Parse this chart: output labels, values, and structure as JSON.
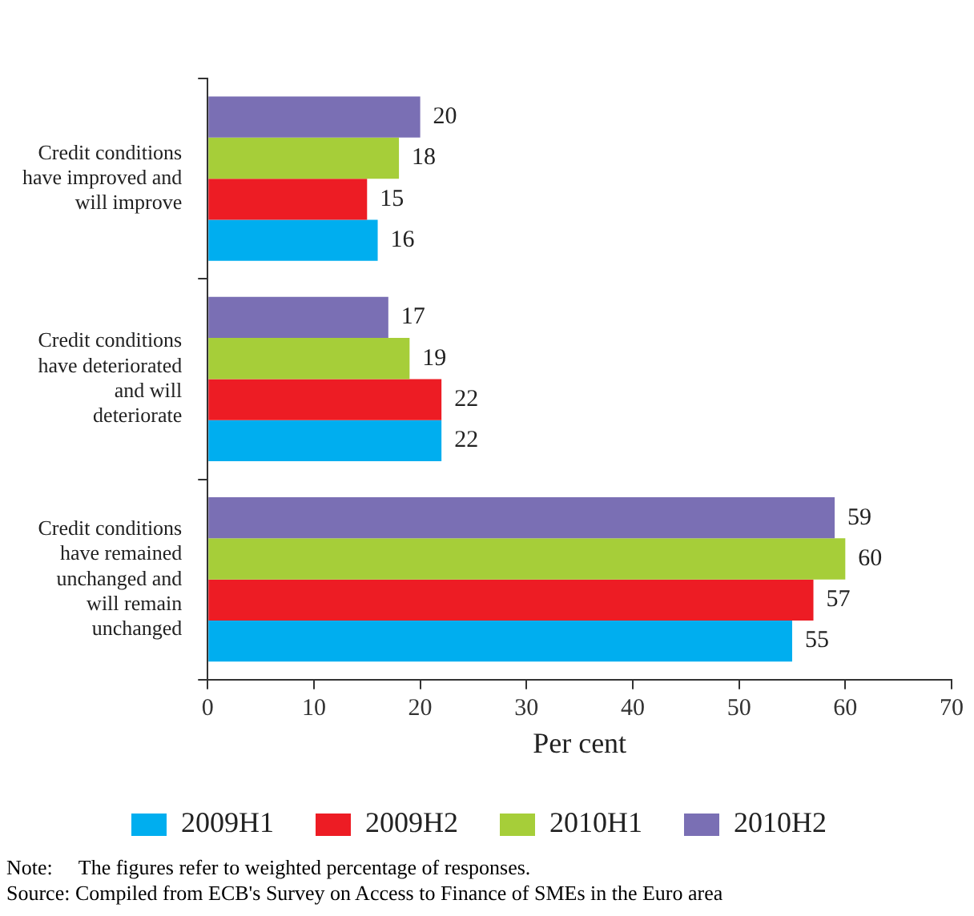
{
  "chart_data": {
    "type": "bar",
    "orientation": "horizontal",
    "xlabel": "Per cent",
    "categories": [
      "Credit conditions have improved and will improve",
      "Credit conditions have deteriorated and will deteriorate",
      "Credit conditions have remained unchanged and will remain unchanged"
    ],
    "series": [
      {
        "name": "2009H1",
        "color": "#00aeef",
        "values": [
          16,
          22,
          55
        ]
      },
      {
        "name": "2009H2",
        "color": "#ed1c24",
        "values": [
          15,
          22,
          57
        ]
      },
      {
        "name": "2010H1",
        "color": "#a6ce39",
        "values": [
          18,
          19,
          60
        ]
      },
      {
        "name": "2010H2",
        "color": "#7a6fb4",
        "values": [
          20,
          17,
          59
        ]
      }
    ],
    "xlim": [
      0,
      70
    ],
    "xticks": [
      0,
      10,
      20,
      30,
      40,
      50,
      60,
      70
    ],
    "grid": false,
    "legend": "bottom",
    "data_labels": true,
    "annotations": [
      "Note:     The figures refer to weighted percentage of responses.",
      "Source: Compiled from ECB's Survey on Access to Finance of SMEs in the Euro area"
    ]
  }
}
